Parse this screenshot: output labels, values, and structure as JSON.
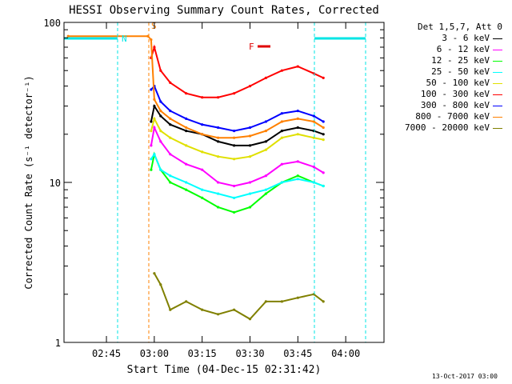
{
  "chart_data": {
    "type": "line",
    "title": "HESSI Observing Summary Count Rates, Corrected",
    "xlabel": "Start Time (04-Dec-15 02:31:42)",
    "ylabel": "Corrected Count Rate (s⁻¹ detector⁻¹)",
    "x_scale": "time",
    "y_scale": "log",
    "xlim": [
      "02:31:42",
      "04:12:00"
    ],
    "ylim": [
      1,
      100
    ],
    "x_ticks": [
      "02:45",
      "03:00",
      "03:15",
      "03:30",
      "03:45",
      "04:00"
    ],
    "y_ticks": [
      "1",
      "10",
      "100"
    ],
    "legend_title": "Det 1,5,7, Att 0",
    "legend_position": "right",
    "flags": [
      {
        "label": "N",
        "color": "#00e5e5"
      },
      {
        "label": "F",
        "color": "#e00000"
      },
      {
        "label": "S",
        "color": "#ff8000"
      }
    ],
    "series": [
      {
        "name": "3 - 6 keV",
        "color": "#000000",
        "x": [
          "02:59",
          "03:00",
          "03:02",
          "03:05",
          "03:10",
          "03:15",
          "03:20",
          "03:25",
          "03:30",
          "03:35",
          "03:40",
          "03:45",
          "03:50",
          "03:53"
        ],
        "y": [
          24,
          30,
          26,
          23,
          21,
          20,
          18,
          17,
          17,
          18,
          21,
          22,
          21,
          20
        ]
      },
      {
        "name": "6 - 12 keV",
        "color": "#ff00ff",
        "x": [
          "02:59",
          "03:00",
          "03:02",
          "03:05",
          "03:10",
          "03:15",
          "03:20",
          "03:25",
          "03:30",
          "03:35",
          "03:40",
          "03:45",
          "03:50",
          "03:53"
        ],
        "y": [
          17,
          22,
          18,
          15,
          13,
          12,
          10,
          9.5,
          10,
          11,
          13,
          13.5,
          12.5,
          11.5
        ]
      },
      {
        "name": "12 - 25 keV",
        "color": "#00ff00",
        "x": [
          "02:59",
          "03:00",
          "03:02",
          "03:05",
          "03:10",
          "03:15",
          "03:20",
          "03:25",
          "03:30",
          "03:35",
          "03:40",
          "03:45",
          "03:50",
          "03:53"
        ],
        "y": [
          12,
          15,
          12,
          10,
          9,
          8,
          7,
          6.5,
          7,
          8.5,
          10,
          11,
          10,
          9.5
        ]
      },
      {
        "name": "25 - 50 keV",
        "color": "#00ffff",
        "x": [
          "02:59",
          "03:00",
          "03:02",
          "03:05",
          "03:10",
          "03:15",
          "03:20",
          "03:25",
          "03:30",
          "03:35",
          "03:40",
          "03:45",
          "03:50",
          "03:53"
        ],
        "y": [
          14,
          15,
          12,
          11,
          10,
          9,
          8.5,
          8,
          8.5,
          9,
          10,
          10.5,
          10,
          9.5
        ]
      },
      {
        "name": "50 - 100 keV",
        "color": "#e0e000",
        "x": [
          "02:59",
          "03:00",
          "03:02",
          "03:05",
          "03:10",
          "03:15",
          "03:20",
          "03:25",
          "03:30",
          "03:35",
          "03:40",
          "03:45",
          "03:50",
          "03:53"
        ],
        "y": [
          21,
          25,
          21,
          19,
          17,
          15.5,
          14.5,
          14,
          14.5,
          16,
          19,
          20,
          19,
          18.5
        ]
      },
      {
        "name": "100 - 300 keV",
        "color": "#ff0000",
        "x": [
          "02:59",
          "03:00",
          "03:02",
          "03:05",
          "03:10",
          "03:15",
          "03:20",
          "03:25",
          "03:30",
          "03:35",
          "03:40",
          "03:45",
          "03:50",
          "03:53"
        ],
        "y": [
          60,
          70,
          50,
          42,
          36,
          34,
          34,
          36,
          40,
          45,
          50,
          53,
          48,
          45
        ]
      },
      {
        "name": "300 - 800 keV",
        "color": "#0000ff",
        "x": [
          "02:59",
          "03:00",
          "03:02",
          "03:05",
          "03:10",
          "03:15",
          "03:20",
          "03:25",
          "03:30",
          "03:35",
          "03:40",
          "03:45",
          "03:50",
          "03:53"
        ],
        "y": [
          38,
          40,
          32,
          28,
          25,
          23,
          22,
          21,
          22,
          24,
          27,
          28,
          26,
          24
        ]
      },
      {
        "name": "800 - 7000 keV",
        "color": "#ff8000",
        "x": [
          "02:33",
          "02:58",
          "02:59",
          "03:00",
          "03:02",
          "03:05",
          "03:10",
          "03:15",
          "03:20",
          "03:25",
          "03:30",
          "03:35",
          "03:40",
          "03:45",
          "03:50",
          "03:53"
        ],
        "y": [
          82,
          82,
          78,
          33,
          28,
          25,
          22,
          20,
          19,
          19,
          19.5,
          21,
          24,
          25,
          24,
          22
        ]
      },
      {
        "name": "7000 - 20000 keV",
        "color": "#808000",
        "x": [
          "03:00",
          "03:02",
          "03:05",
          "03:10",
          "03:15",
          "03:20",
          "03:25",
          "03:30",
          "03:35",
          "03:40",
          "03:45",
          "03:50",
          "03:53"
        ],
        "y": [
          2.7,
          2.3,
          1.6,
          1.8,
          1.6,
          1.5,
          1.6,
          1.4,
          1.8,
          1.8,
          1.9,
          2.0,
          1.8
        ]
      }
    ]
  },
  "footer_date": "13-Oct-2017 03:00"
}
